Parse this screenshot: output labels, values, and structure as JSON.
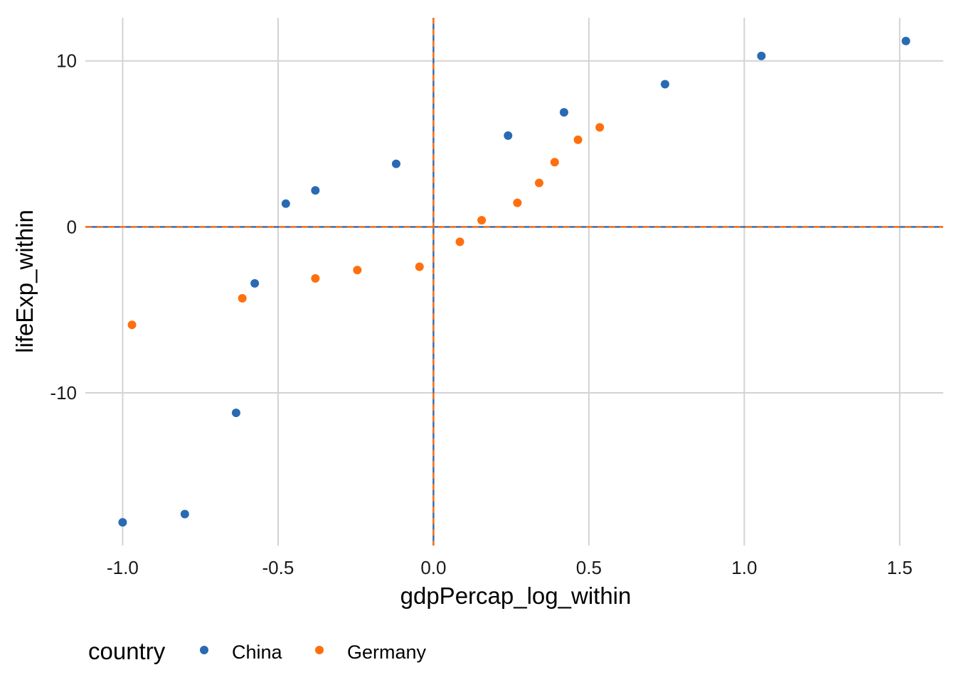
{
  "chart_data": {
    "type": "scatter",
    "title": "",
    "xlabel": "gdpPercap_log_within",
    "ylabel": "lifeExp_within",
    "xlim": [
      -1.12,
      1.64
    ],
    "ylim": [
      -19.2,
      12.6
    ],
    "xticks": [
      -1.0,
      -0.5,
      0.0,
      0.5,
      1.0,
      1.5
    ],
    "xtick_labels": [
      "-1.0",
      "-0.5",
      "0.0",
      "0.5",
      "1.0",
      "1.5"
    ],
    "yticks": [
      -10,
      0,
      10
    ],
    "ytick_labels": [
      "-10",
      "0",
      "10"
    ],
    "grid": true,
    "legend": {
      "title": "country",
      "position": "bottom-left"
    },
    "reference_lines": [
      {
        "orientation": "horizontal",
        "value": 0,
        "style": "dashed",
        "colors": [
          "#2a6ab4",
          "#ff6f0e"
        ]
      },
      {
        "orientation": "vertical",
        "value": 0,
        "style": "dashed",
        "colors": [
          "#2a6ab4",
          "#ff6f0e"
        ]
      }
    ],
    "series": [
      {
        "name": "China",
        "color": "#2a6ab4",
        "points": [
          [
            -1.0,
            -17.8
          ],
          [
            -0.8,
            -17.3
          ],
          [
            -0.635,
            -11.2
          ],
          [
            -0.575,
            -3.4
          ],
          [
            -0.475,
            1.4
          ],
          [
            -0.38,
            2.2
          ],
          [
            -0.12,
            3.8
          ],
          [
            0.24,
            5.5
          ],
          [
            0.42,
            6.9
          ],
          [
            0.745,
            8.6
          ],
          [
            1.055,
            10.3
          ],
          [
            1.52,
            11.2
          ]
        ]
      },
      {
        "name": "Germany",
        "color": "#ff6f0e",
        "points": [
          [
            -0.97,
            -5.9
          ],
          [
            -0.615,
            -4.3
          ],
          [
            -0.38,
            -3.1
          ],
          [
            -0.245,
            -2.6
          ],
          [
            -0.045,
            -2.4
          ],
          [
            0.085,
            -0.9
          ],
          [
            0.155,
            0.4
          ],
          [
            0.27,
            1.45
          ],
          [
            0.34,
            2.65
          ],
          [
            0.39,
            3.9
          ],
          [
            0.465,
            5.25
          ],
          [
            0.535,
            6.0
          ]
        ]
      }
    ]
  }
}
